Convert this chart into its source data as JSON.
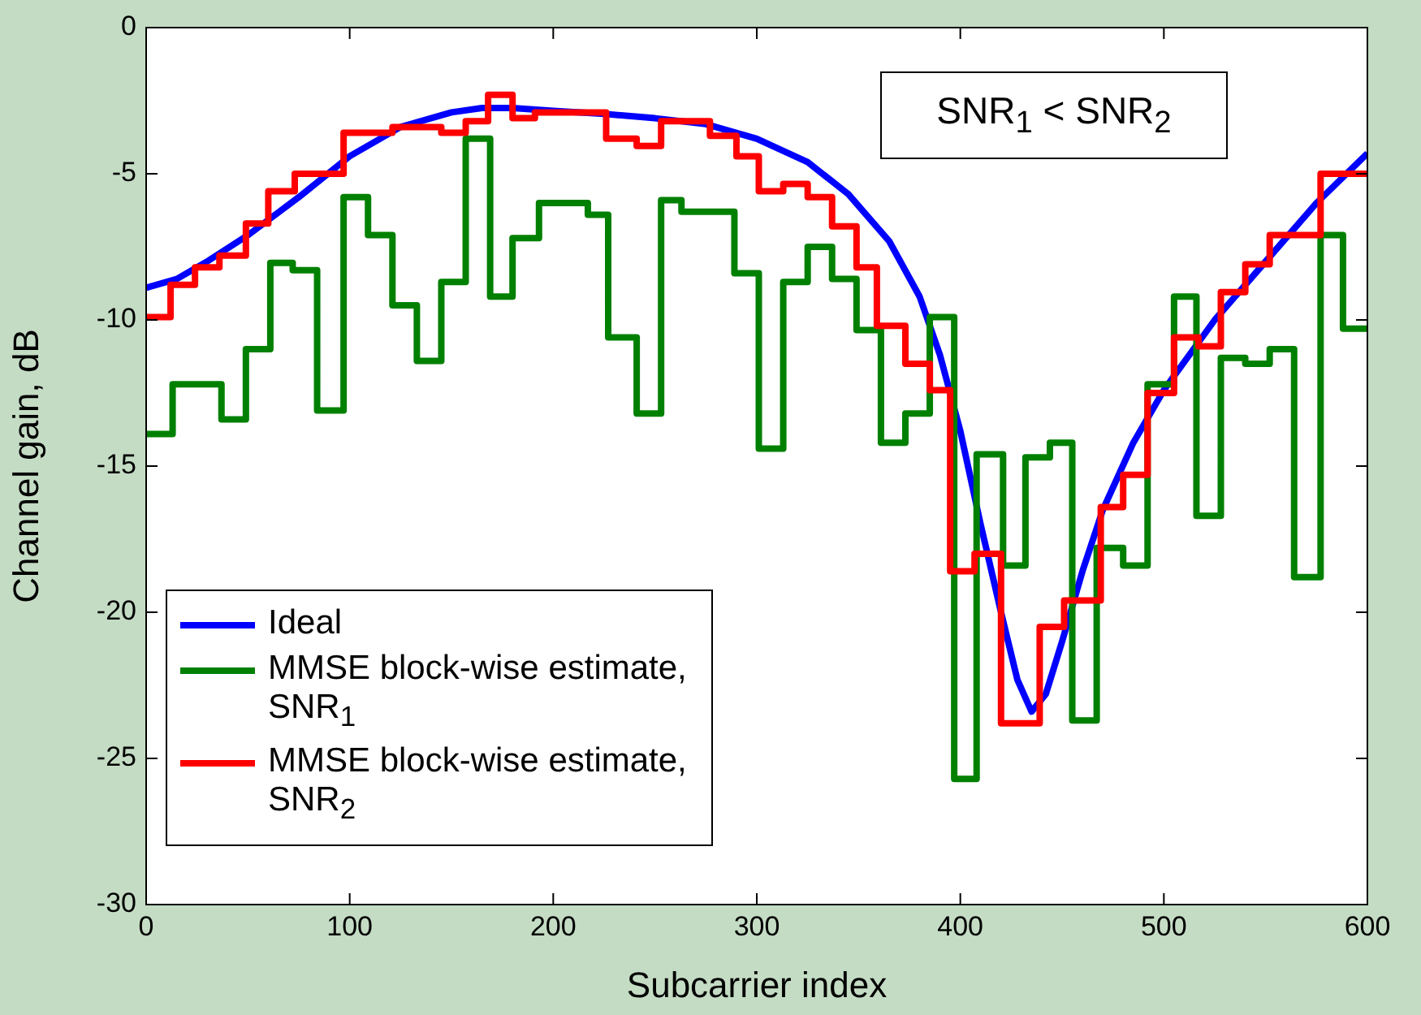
{
  "chart_data": {
    "type": "line",
    "xlabel": "Subcarrier index",
    "ylabel": "Channel gain, dB",
    "xlim": [
      0,
      600
    ],
    "xticks": [
      0,
      100,
      200,
      300,
      400,
      500,
      600
    ],
    "ylim": [
      -30,
      0
    ],
    "yticks": [
      -30,
      -25,
      -20,
      -15,
      -10,
      -5,
      0
    ],
    "legend": "bottom left",
    "annotations": [
      "SNR$_{1}$ < SNR$_{2}$"
    ],
    "series": [
      {
        "name": "Ideal",
        "type": "line",
        "color": "#0000ff",
        "x": [
          0,
          15,
          30,
          50,
          75,
          100,
          125,
          150,
          165,
          180,
          200,
          225,
          250,
          275,
          300,
          325,
          345,
          365,
          380,
          390,
          400,
          410,
          420,
          428,
          435,
          442,
          450,
          460,
          470,
          485,
          500,
          525,
          550,
          575,
          600
        ],
        "values": [
          -8.9,
          -8.6,
          -8.0,
          -7.1,
          -5.8,
          -4.4,
          -3.4,
          -2.9,
          -2.75,
          -2.75,
          -2.85,
          -2.95,
          -3.1,
          -3.3,
          -3.8,
          -4.6,
          -5.7,
          -7.3,
          -9.2,
          -11.2,
          -13.8,
          -17.0,
          -20.0,
          -22.3,
          -23.4,
          -22.8,
          -21.0,
          -18.6,
          -16.5,
          -14.2,
          -12.4,
          -10.0,
          -8.0,
          -6.0,
          -4.3
        ]
      },
      {
        "name": "MMSE block-wise estimate, SNR$_{1}$",
        "type": "step",
        "color": "#008000",
        "x": [
          0,
          13,
          37,
          49,
          61,
          72,
          84,
          97,
          109,
          121,
          133,
          145,
          157,
          169,
          180,
          193,
          217,
          227,
          241,
          253,
          263,
          289,
          301,
          313,
          325,
          337,
          349,
          361,
          373,
          385,
          397,
          408,
          421,
          432,
          444,
          455,
          467,
          480,
          492,
          505,
          516,
          528,
          540,
          552,
          564,
          577,
          588,
          600
        ],
        "values": [
          -13.9,
          -12.2,
          -13.4,
          -11.0,
          -8.05,
          -8.3,
          -13.1,
          -5.8,
          -7.1,
          -9.5,
          -11.4,
          -8.7,
          -3.8,
          -9.2,
          -7.2,
          -6.0,
          -6.4,
          -10.6,
          -13.2,
          -5.9,
          -6.3,
          -8.4,
          -14.4,
          -8.7,
          -7.5,
          -8.6,
          -10.35,
          -14.2,
          -13.2,
          -9.9,
          -25.7,
          -14.6,
          -18.4,
          -14.7,
          -14.2,
          -23.7,
          -17.8,
          -18.4,
          -12.2,
          -9.2,
          -16.7,
          -11.3,
          -11.5,
          -11.0,
          -18.8,
          -7.1,
          -10.3,
          -10.3
        ]
      },
      {
        "name": "MMSE block-wise estimate, SNR$_{2}$",
        "type": "step",
        "color": "#ff0000",
        "x": [
          0,
          12,
          24,
          36,
          49,
          60,
          73,
          97,
          121,
          145,
          157,
          168,
          180,
          191,
          226,
          241,
          253,
          277,
          290,
          301,
          313,
          325,
          337,
          349,
          359,
          373,
          385,
          395,
          407,
          420,
          439,
          451,
          469,
          480,
          492,
          505,
          517,
          528,
          540,
          552,
          577,
          600
        ],
        "values": [
          -9.9,
          -8.8,
          -8.2,
          -7.8,
          -6.7,
          -5.6,
          -5.0,
          -3.6,
          -3.4,
          -3.6,
          -3.2,
          -2.3,
          -3.1,
          -2.9,
          -3.8,
          -4.05,
          -3.2,
          -3.7,
          -4.4,
          -5.6,
          -5.35,
          -5.8,
          -6.8,
          -8.2,
          -10.2,
          -11.5,
          -12.4,
          -18.6,
          -18.0,
          -23.8,
          -20.5,
          -19.6,
          -16.4,
          -15.3,
          -12.5,
          -10.6,
          -10.9,
          -9.05,
          -8.1,
          -7.1,
          -5.0,
          -5.0
        ]
      }
    ]
  }
}
